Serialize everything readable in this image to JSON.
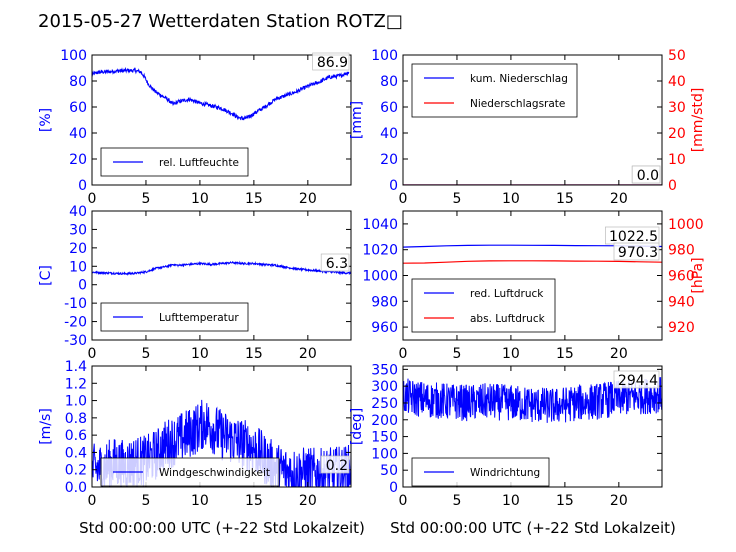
{
  "figure": {
    "title": "2015-05-27 Wetterdaten Station ROTZ□",
    "xlabel": "Std 00:00:00 UTC (+-22 Std Lokalzeit)"
  },
  "chart_data": [
    {
      "id": "humidity",
      "type": "line",
      "ylabel": "[%]",
      "ylim": [
        0,
        100
      ],
      "yticks": [
        0,
        20,
        40,
        60,
        80,
        100
      ],
      "xlim": [
        0,
        24
      ],
      "xticks": [
        0,
        5,
        10,
        15,
        20
      ],
      "legend_position": "lower-left",
      "annotation": "86.9",
      "series": [
        {
          "name": "rel. Luftfeuchte",
          "color": "#0000ff",
          "axis": "left",
          "x": [
            0,
            0.5,
            1,
            2,
            3,
            4,
            4.5,
            4.8,
            5.2,
            5.6,
            6,
            7,
            7.5,
            8,
            9,
            10,
            11,
            12,
            13,
            13.5,
            14,
            14.5,
            15,
            16,
            17,
            18,
            19,
            20,
            21,
            22,
            23,
            23.8
          ],
          "y": [
            85,
            86.5,
            87,
            87.5,
            88,
            88,
            87,
            84,
            78,
            74,
            71,
            66,
            62,
            64,
            66,
            63,
            61,
            59,
            55,
            52,
            51,
            52,
            55,
            60,
            66,
            69,
            72,
            76,
            79,
            83,
            84,
            86.9
          ],
          "noise": 1.5
        }
      ]
    },
    {
      "id": "precipitation",
      "type": "line",
      "ylabel": "[mm]",
      "ylim": [
        0,
        100
      ],
      "yticks": [
        0,
        20,
        40,
        60,
        80,
        100
      ],
      "ylabel_right": "[mm/std]",
      "ylim_right": [
        0,
        50
      ],
      "yticks_right": [
        0,
        10,
        20,
        30,
        40,
        50
      ],
      "xlim": [
        0,
        24
      ],
      "xticks": [
        0,
        5,
        10,
        15,
        20
      ],
      "legend_position": "top-left",
      "annotations": [
        "0.0",
        "0.0"
      ],
      "series": [
        {
          "name": "kum. Niederschlag",
          "color": "#0000ff",
          "axis": "left",
          "x": [
            0,
            24
          ],
          "y": [
            0,
            0
          ]
        },
        {
          "name": "Niederschlagsrate",
          "color": "#ff0000",
          "axis": "right",
          "x": [
            0,
            24
          ],
          "y": [
            0,
            0
          ]
        }
      ]
    },
    {
      "id": "temperature",
      "type": "line",
      "ylabel": "[C]",
      "ylim": [
        -30,
        40
      ],
      "yticks": [
        -30,
        -20,
        -10,
        0,
        10,
        20,
        30,
        40
      ],
      "xlim": [
        0,
        24
      ],
      "xticks": [
        0,
        5,
        10,
        15,
        20
      ],
      "legend_position": "lower-left",
      "annotation": "6.3",
      "series": [
        {
          "name": "Lufttemperatur",
          "color": "#0000ff",
          "axis": "left",
          "x": [
            0,
            1,
            2,
            3,
            4,
            5,
            5.5,
            6,
            6.5,
            7,
            7.5,
            8,
            9,
            10,
            11,
            12,
            13,
            14,
            15,
            16,
            17,
            18,
            19,
            20,
            21,
            22,
            23,
            24
          ],
          "y": [
            6.8,
            6.5,
            6.2,
            6,
            6.2,
            7,
            8,
            9,
            9.5,
            10,
            11,
            10.5,
            11,
            11.5,
            11,
            11.5,
            12,
            11.5,
            11.5,
            11,
            10.5,
            9.5,
            8.5,
            8,
            7.5,
            7,
            6.5,
            6.3
          ],
          "noise": 0.5
        }
      ]
    },
    {
      "id": "pressure",
      "type": "line",
      "ylabel": "",
      "ylim": [
        950,
        1050
      ],
      "yticks": [
        960,
        980,
        1000,
        1020,
        1040
      ],
      "ylabel_right": "[hPa]",
      "ylim_right": [
        910,
        1010
      ],
      "yticks_right": [
        920,
        940,
        960,
        980,
        1000
      ],
      "xlim": [
        0,
        24
      ],
      "xticks": [
        0,
        5,
        10,
        15,
        20
      ],
      "legend_position": "lower-left",
      "annotations": [
        "1022.5",
        "970.3"
      ],
      "series": [
        {
          "name": "red. Luftdruck",
          "color": "#0000ff",
          "axis": "left",
          "x": [
            0,
            2,
            4,
            6,
            8,
            10,
            12,
            14,
            16,
            18,
            20,
            22,
            24
          ],
          "y": [
            1022,
            1022.5,
            1023,
            1023.3,
            1023.5,
            1023.5,
            1023.4,
            1023.3,
            1023.2,
            1023.1,
            1023,
            1022.8,
            1022.5
          ]
        },
        {
          "name": "abs. Luftdruck",
          "color": "#ff0000",
          "axis": "right",
          "x": [
            0,
            2,
            4,
            6,
            8,
            10,
            12,
            14,
            16,
            18,
            20,
            22,
            24
          ],
          "y": [
            969.5,
            969.7,
            970.3,
            971,
            971.3,
            971.4,
            971.4,
            971.3,
            971.2,
            971.1,
            970.9,
            970.6,
            970.3
          ]
        }
      ]
    },
    {
      "id": "windspeed",
      "type": "line",
      "ylabel": "[m/s]",
      "ylim": [
        0,
        1.4
      ],
      "yticks": [
        0.0,
        0.2,
        0.4,
        0.6,
        0.8,
        1.0,
        1.2,
        1.4
      ],
      "xlim": [
        0,
        24
      ],
      "xticks": [
        0,
        5,
        10,
        15,
        20
      ],
      "legend_position": "lower-left",
      "annotation": "0.2",
      "series": [
        {
          "name": "Windgeschwindigkeit",
          "color": "#0000ff",
          "axis": "left",
          "x": [
            0,
            1,
            2,
            3,
            4,
            5,
            6,
            6.5,
            7,
            8,
            9,
            10,
            10.5,
            11,
            12,
            13,
            14,
            15,
            16,
            17,
            18,
            19,
            20,
            21,
            22,
            23,
            24
          ],
          "y": [
            0.2,
            0.22,
            0.28,
            0.25,
            0.3,
            0.3,
            0.38,
            0.45,
            0.5,
            0.55,
            0.62,
            0.7,
            0.75,
            0.7,
            0.6,
            0.55,
            0.5,
            0.45,
            0.32,
            0.22,
            0.18,
            0.16,
            0.17,
            0.15,
            0.16,
            0.18,
            0.2
          ],
          "noise": 0.3
        }
      ]
    },
    {
      "id": "winddirection",
      "type": "line",
      "ylabel": "[deg]",
      "ylim": [
        0,
        360
      ],
      "yticks": [
        0,
        50,
        100,
        150,
        200,
        250,
        300,
        350
      ],
      "xlim": [
        0,
        24
      ],
      "xticks": [
        0,
        5,
        10,
        15,
        20
      ],
      "legend_position": "lower-left",
      "annotation": "294.4",
      "series": [
        {
          "name": "Windrichtung",
          "color": "#0000ff",
          "axis": "left",
          "x": [
            0,
            2,
            4,
            6,
            8,
            10,
            12,
            14,
            16,
            18,
            20,
            22,
            24
          ],
          "y": [
            270,
            260,
            255,
            250,
            255,
            250,
            245,
            240,
            250,
            255,
            265,
            270,
            275
          ],
          "noise": 55
        }
      ]
    }
  ]
}
